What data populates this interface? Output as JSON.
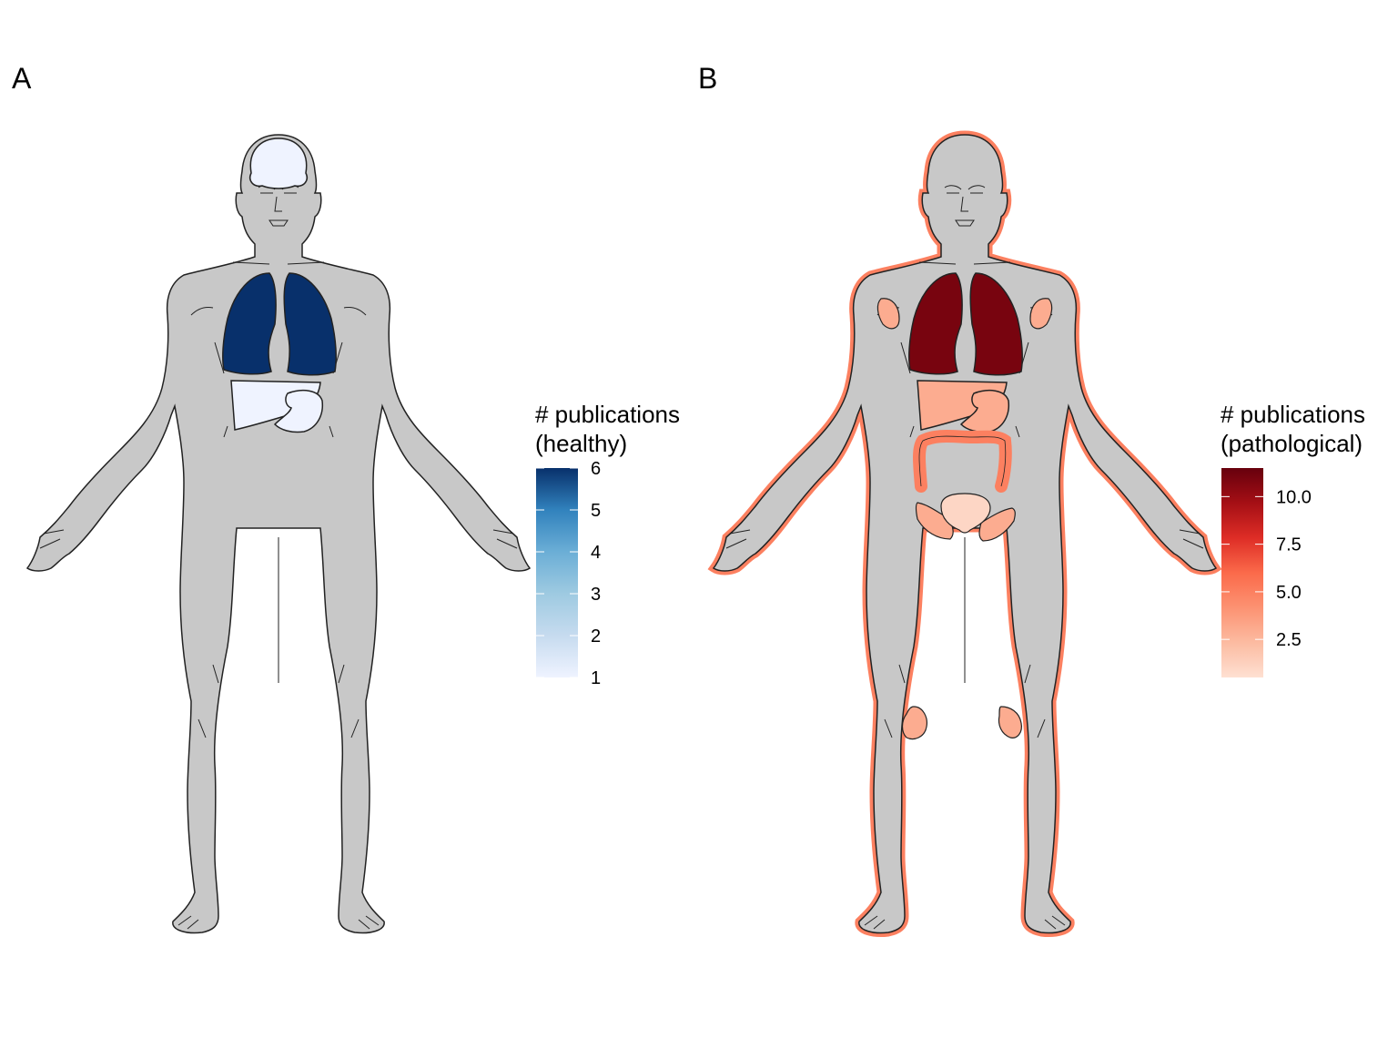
{
  "panels": [
    {
      "label": "A",
      "legend": {
        "title_line1": "# publications",
        "title_line2": "(healthy)",
        "min": 1,
        "max": 6,
        "ticks": [
          "1",
          "2",
          "3",
          "4",
          "5",
          "6"
        ],
        "tick_values": [
          1,
          2,
          3,
          4,
          5,
          6
        ],
        "colors": [
          "#eff3ff",
          "#c6dbef",
          "#9ecae1",
          "#6baed6",
          "#3182bd",
          "#08306b"
        ]
      },
      "organs": {
        "body_outline": null,
        "brain": 1,
        "lungs": 6,
        "liver": 1,
        "stomach": 1,
        "colon": null,
        "bladder": null,
        "pelvis": null,
        "shoulder_joints": null,
        "knees": null
      }
    },
    {
      "label": "B",
      "legend": {
        "title_line1": "# publications",
        "title_line2": "(pathological)",
        "min": 0.5,
        "max": 11.5,
        "ticks": [
          "2.5",
          "5.0",
          "7.5",
          "10.0"
        ],
        "tick_values": [
          2.5,
          5.0,
          7.5,
          10.0
        ],
        "colors": [
          "#fee0d2",
          "#fcbba1",
          "#fc9272",
          "#fb6a4a",
          "#de2d26",
          "#a50f15",
          "#67000d"
        ]
      },
      "organs": {
        "body_outline": 5,
        "brain": null,
        "lungs": 11,
        "liver": 3,
        "stomach": 3,
        "colon": 5,
        "bladder": 1,
        "pelvis": 3,
        "shoulder_joints": 3,
        "knees": 3
      }
    }
  ],
  "colors": {
    "body_fill": "#c8c8c8",
    "stroke": "#222222"
  }
}
